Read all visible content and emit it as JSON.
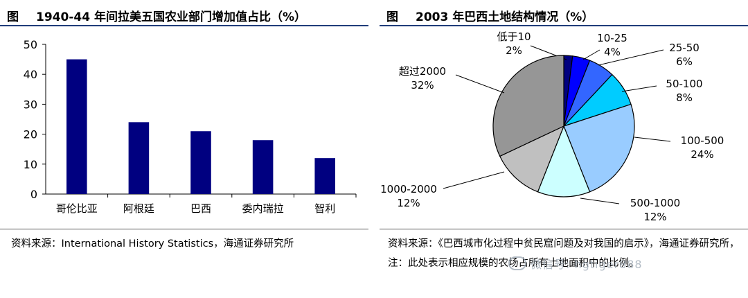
{
  "left_panel": {
    "fig_tag": "图",
    "title": "1940-44 年间拉美五国农业部门增加值占比（%）",
    "source": "资料来源：International History Statistics，海通证券研究所"
  },
  "right_panel": {
    "fig_tag": "图",
    "title": "2003 年巴西土地结构情况（%）",
    "source": "资料来源：《巴西城市化过程中贫民窟问题及对我国的启示》，海通证券研究所，注：此处表示相应规模的农场占所有土地面积中的比例。"
  },
  "watermark": "微信号: hgtiger888",
  "colors": {
    "bar": "#000080",
    "rule": "#1f3c7a"
  },
  "chart_data": [
    {
      "type": "bar",
      "categories": [
        "哥伦比亚",
        "阿根廷",
        "巴西",
        "委内瑞拉",
        "智利"
      ],
      "values": [
        45,
        24,
        21,
        18,
        12
      ],
      "ylim": [
        0,
        50
      ],
      "yticks": [
        0,
        10,
        20,
        30,
        40,
        50
      ],
      "grid": false
    },
    {
      "type": "pie",
      "labels": [
        "低于10",
        "10-25",
        "25-50",
        "50-100",
        "100-500",
        "500-1000",
        "1000-2000",
        "超过2000"
      ],
      "values": [
        2,
        4,
        6,
        8,
        24,
        12,
        12,
        32
      ],
      "value_labels": [
        "2%",
        "4%",
        "6%",
        "8%",
        "24%",
        "12%",
        "12%",
        "32%"
      ],
      "colors": [
        "#000080",
        "#0000ff",
        "#3366ff",
        "#00ccff",
        "#99ccff",
        "#ccffff",
        "#c0c0c0",
        "#969696"
      ]
    }
  ]
}
